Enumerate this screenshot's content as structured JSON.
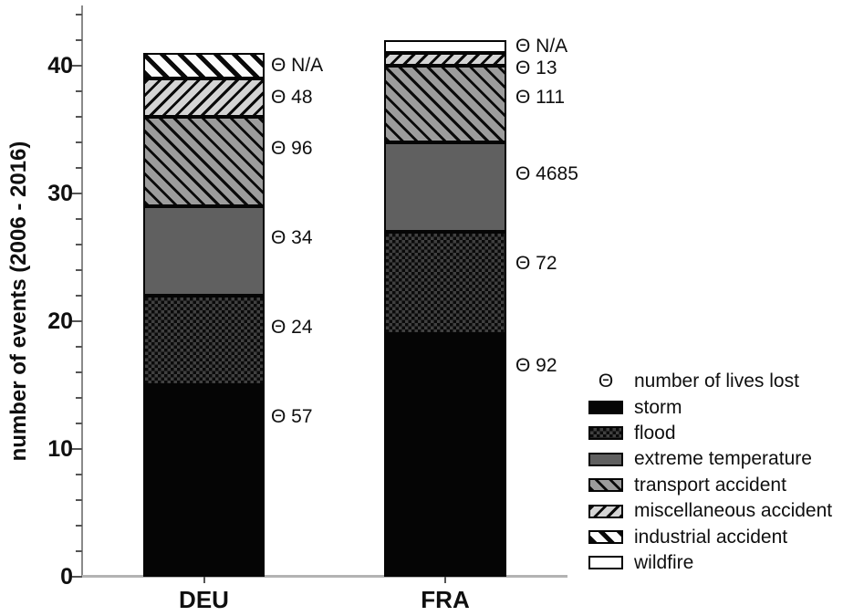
{
  "chart_data": {
    "type": "bar",
    "stacked": true,
    "categories": [
      "DEU",
      "FRA"
    ],
    "series": [
      {
        "key": "storm",
        "name": "storm",
        "values": [
          15,
          19
        ],
        "lives_lost": [
          "57",
          "92"
        ]
      },
      {
        "key": "flood",
        "name": "flood",
        "values": [
          7,
          8
        ],
        "lives_lost": [
          "24",
          "72"
        ]
      },
      {
        "key": "extreme",
        "name": "extreme temperature",
        "values": [
          7,
          7
        ],
        "lives_lost": [
          "34",
          "4685"
        ]
      },
      {
        "key": "transport",
        "name": "transport accident",
        "values": [
          7,
          6
        ],
        "lives_lost": [
          "96",
          "111"
        ]
      },
      {
        "key": "misc",
        "name": "miscellaneous accident",
        "values": [
          3,
          1
        ],
        "lives_lost": [
          "48",
          "13"
        ]
      },
      {
        "key": "industrial",
        "name": "industrial accident",
        "values": [
          2,
          0
        ],
        "lives_lost": [
          "N/A",
          ""
        ]
      },
      {
        "key": "wildfire",
        "name": "wildfire",
        "values": [
          0,
          1
        ],
        "lives_lost": [
          "",
          "N/A"
        ]
      }
    ],
    "ylabel": "number of events (2006 - 2016)",
    "ylim": [
      0,
      45
    ],
    "yticks": [
      0,
      10,
      20,
      30,
      40
    ],
    "minor_tick_step": 2,
    "grid": false,
    "lives_symbol": "Θ",
    "legend_position": "right-bottom"
  },
  "legend": {
    "header_symbol": "Θ",
    "header_label": "number of lives lost",
    "items": [
      {
        "key": "storm",
        "label": "storm"
      },
      {
        "key": "flood",
        "label": "flood"
      },
      {
        "key": "extreme",
        "label": "extreme temperature"
      },
      {
        "key": "transport",
        "label": "transport accident"
      },
      {
        "key": "misc",
        "label": "miscellaneous accident"
      },
      {
        "key": "industrial",
        "label": "industrial accident"
      },
      {
        "key": "wildfire",
        "label": "wildfire"
      }
    ]
  },
  "colors": {
    "storm": "#050505",
    "flood_base": "#0a0a0a",
    "extreme_temperature": "#606060",
    "transport_base": "#9c9c9c",
    "misc_base": "#d4d4d4",
    "industrial_base": "#fcfcfc",
    "wildfire": "#ffffff",
    "axis": "#8a8a8a",
    "baseline": "#b3b3b3",
    "text": "#0f0f0f"
  }
}
